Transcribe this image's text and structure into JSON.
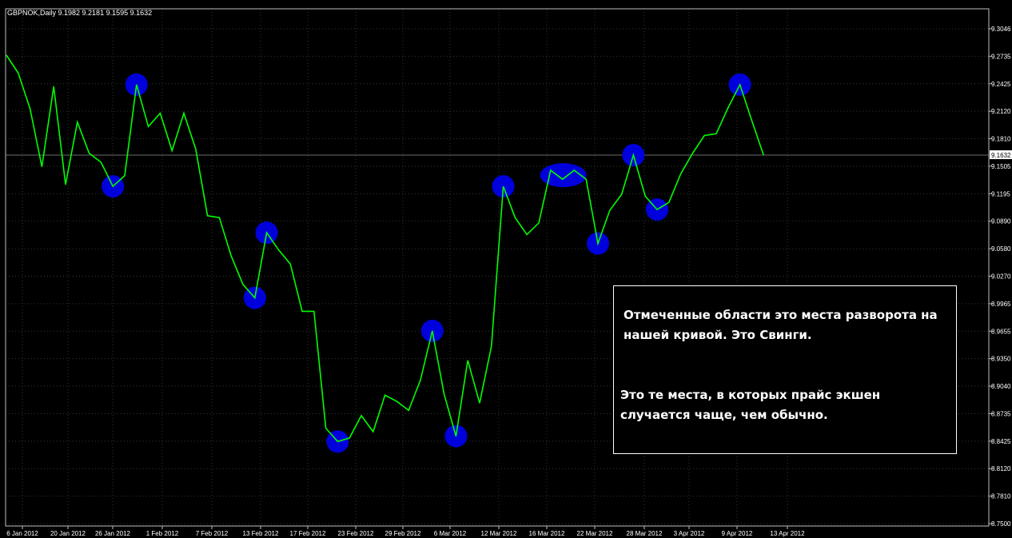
{
  "window": {
    "header": "GBPNOK,Daily  9.1982 9.2181 9.1595 9.1632",
    "current_price_label": "9.1632"
  },
  "colors": {
    "background": "#000000",
    "line": "#00ff00",
    "markers": "#0000dd",
    "grid": "#2b3a2b",
    "axis_text": "#ffffff",
    "current_label_bg": "#ffffff"
  },
  "annotation": {
    "paragraph1": "Отмеченные области это места разворота на нашей кривой. Это Свинги.",
    "paragraph2": "Это те места, в которых прайс экшен случается чаще, чем обычно."
  },
  "chart_data": {
    "type": "line",
    "title": "GBPNOK,Daily",
    "xlabel": "",
    "ylabel": "",
    "grid": true,
    "ylim": [
      8.75,
      9.315
    ],
    "y_tick_labels": [
      "9.3046",
      "9.2735",
      "9.2425",
      "9.2120",
      "9.1810",
      "9.1505",
      "9.1195",
      "9.0890",
      "9.0580",
      "9.0270",
      "8.9965",
      "8.9655",
      "8.9350",
      "8.9040",
      "8.8735",
      "8.8425",
      "8.8120",
      "8.7810",
      "8.7500"
    ],
    "x_tick_labels": [
      "6 Jan 2012",
      "20 Jan 2012",
      "26 Jan 2012",
      "1 Feb 2012",
      "7 Feb 2012",
      "13 Feb 2012",
      "17 Feb 2012",
      "23 Feb 2012",
      "29 Feb 2012",
      "6 Mar 2012",
      "12 Mar 2012",
      "16 Mar 2012",
      "22 Mar 2012",
      "28 Mar 2012",
      "3 Apr 2012",
      "9 Apr 2012",
      "13 Apr 2012"
    ],
    "series": [
      {
        "values": [
          9.275,
          9.255,
          9.215,
          9.15,
          9.24,
          9.13,
          9.2,
          9.165,
          9.155,
          9.128,
          9.14,
          9.242,
          9.195,
          9.21,
          9.168,
          9.21,
          9.17,
          9.095,
          9.093,
          9.05,
          9.018,
          9.003,
          9.076,
          9.057,
          9.041,
          8.988,
          8.988,
          8.857,
          8.842,
          8.846,
          8.871,
          8.853,
          8.894,
          8.887,
          8.877,
          8.911,
          8.966,
          8.895,
          8.848,
          8.933,
          8.885,
          8.949,
          9.128,
          9.093,
          9.074,
          9.087,
          9.146,
          9.136,
          9.146,
          9.136,
          9.064,
          9.101,
          9.119,
          9.163,
          9.117,
          9.102,
          9.11,
          9.142,
          9.165,
          9.185,
          9.187,
          9.216,
          9.242,
          9.202,
          9.163
        ]
      }
    ],
    "swing_points": [
      {
        "date": "26 Jan 2012",
        "value": 9.128
      },
      {
        "date": "30 Jan 2012",
        "value": 9.242
      },
      {
        "date": "13 Feb 2012",
        "value": 9.003
      },
      {
        "date": "14 Feb 2012",
        "value": 9.076
      },
      {
        "date": "22 Feb 2012",
        "value": 8.842
      },
      {
        "date": "5 Mar 2012",
        "value": 8.966
      },
      {
        "date": "7 Mar 2012",
        "value": 8.848
      },
      {
        "date": "12 Mar 2012",
        "value": 9.128
      },
      {
        "date": "19 Mar 2012",
        "value": 9.14
      },
      {
        "date": "23 Mar 2012",
        "value": 9.064
      },
      {
        "date": "28 Mar 2012",
        "value": 9.163
      },
      {
        "date": "30 Mar 2012",
        "value": 9.102
      },
      {
        "date": "9 Apr 2012",
        "value": 9.242
      }
    ]
  }
}
